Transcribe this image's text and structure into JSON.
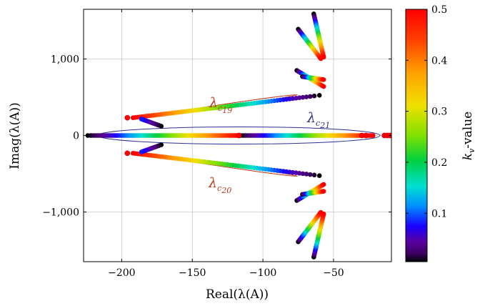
{
  "chart_data": {
    "type": "scatter",
    "xlabel": "Real(λ(A))",
    "ylabel": "Imag(λ(A))",
    "xlim": [
      -227,
      -9
    ],
    "ylim": [
      -1650,
      1650
    ],
    "xticks": [
      -200,
      -150,
      -100,
      -50
    ],
    "xtick_labels": [
      "−200",
      "−150",
      "−100",
      "−50"
    ],
    "yticks": [
      -1000,
      0,
      1000
    ],
    "ytick_labels": [
      "−1,000",
      "0",
      "1,000"
    ],
    "grid": true,
    "colorbar": {
      "label_main": "k",
      "label_sub": "v",
      "label_rest": "-value",
      "range": [
        0.005,
        0.5
      ],
      "ticks": [
        0.1,
        0.2,
        0.3,
        0.4,
        0.5
      ],
      "tick_labels": [
        "0.1",
        "0.2",
        "0.3",
        "0.4",
        "0.5"
      ]
    },
    "annotations": [
      {
        "name": "lambda-c19",
        "main": "λ",
        "sub": "c",
        "subsub": "19",
        "color": "#c0391b"
      },
      {
        "name": "lambda-c20",
        "main": "λ",
        "sub": "c",
        "subsub": "20",
        "color": "#c0391b"
      },
      {
        "name": "lambda-c21",
        "main": "λ",
        "sub": "c",
        "subsub": "21",
        "color": "#2f2f8f"
      }
    ],
    "ellipses": [
      {
        "name": "ellipse-c19",
        "cx": -131,
        "cy": 380,
        "rx": 56,
        "ry": 105,
        "angle": -8.5,
        "color": "#c0391b"
      },
      {
        "name": "ellipse-c20",
        "cx": -131,
        "cy": -380,
        "rx": 56,
        "ry": 105,
        "angle": 8.5,
        "color": "#c0391b"
      },
      {
        "name": "ellipse-c21",
        "cx": -117,
        "cy": 0,
        "rx": 100,
        "ry": 115,
        "angle": 0,
        "color": "#2f2f8f"
      }
    ],
    "series": [
      {
        "name": "",
        "k_range": [
          0.005,
          0.5
        ],
        "start": [
          -224,
          0
        ],
        "end": [
          -116,
          0
        ],
        "count": 110
      },
      {
        "name": "",
        "k_range": [
          0.005,
          0.5
        ],
        "start": [
          -116,
          0
        ],
        "end": [
          -22,
          0
        ],
        "count": 100
      },
      {
        "name": "",
        "k_range": [
          0.005,
          0.5
        ],
        "start": [
          -60,
          525
        ],
        "end": [
          -192,
          232
        ],
        "count": 70
      },
      {
        "name": "",
        "k_range": [
          0.005,
          0.5
        ],
        "start": [
          -60,
          -525
        ],
        "end": [
          -192,
          -232
        ],
        "count": 70
      },
      {
        "name": "",
        "k_range": [
          0.005,
          0.08
        ],
        "start": [
          -172,
          122
        ],
        "end": [
          -186,
          215
        ],
        "count": 14
      },
      {
        "name": "",
        "k_range": [
          0.005,
          0.08
        ],
        "start": [
          -172,
          -122
        ],
        "end": [
          -186,
          -215
        ],
        "count": 14
      },
      {
        "name": "",
        "k_range": [
          0.005,
          0.5
        ],
        "start": [
          -64,
          1590
        ],
        "end": [
          -57,
          1025
        ],
        "count": 45
      },
      {
        "name": "",
        "k_range": [
          0.005,
          0.5
        ],
        "start": [
          -75,
          1390
        ],
        "end": [
          -59,
          1005
        ],
        "count": 45
      },
      {
        "name": "",
        "k_range": [
          0.005,
          0.5
        ],
        "start": [
          -64,
          -1590
        ],
        "end": [
          -57,
          -1025
        ],
        "count": 45
      },
      {
        "name": "",
        "k_range": [
          0.005,
          0.5
        ],
        "start": [
          -75,
          -1390
        ],
        "end": [
          -59,
          -1005
        ],
        "count": 45
      },
      {
        "name": "",
        "k_range": [
          0.005,
          0.5
        ],
        "start": [
          -76,
          850
        ],
        "end": [
          -57,
          640
        ],
        "count": 30
      },
      {
        "name": "",
        "k_range": [
          0.005,
          0.5
        ],
        "start": [
          -72,
          770
        ],
        "end": [
          -57,
          730
        ],
        "count": 30
      },
      {
        "name": "",
        "k_range": [
          0.005,
          0.5
        ],
        "start": [
          -76,
          -850
        ],
        "end": [
          -57,
          -640
        ],
        "count": 30
      },
      {
        "name": "",
        "k_range": [
          0.005,
          0.5
        ],
        "start": [
          -72,
          -770
        ],
        "end": [
          -57,
          -730
        ],
        "count": 30
      }
    ],
    "isolated_points": [
      {
        "x": -196,
        "y": 232,
        "k": 0.5
      },
      {
        "x": -196,
        "y": -232,
        "k": 0.5
      },
      {
        "x": -117,
        "y": 0,
        "k": 0.5
      },
      {
        "x": -30,
        "y": 0,
        "k": 0.5
      },
      {
        "x": -27,
        "y": 0,
        "k": 0.5
      },
      {
        "x": -14,
        "y": 0,
        "k": 0.5
      },
      {
        "x": -12,
        "y": 0,
        "k": 0.5
      },
      {
        "x": -10,
        "y": 0,
        "k": 0.5
      }
    ]
  }
}
